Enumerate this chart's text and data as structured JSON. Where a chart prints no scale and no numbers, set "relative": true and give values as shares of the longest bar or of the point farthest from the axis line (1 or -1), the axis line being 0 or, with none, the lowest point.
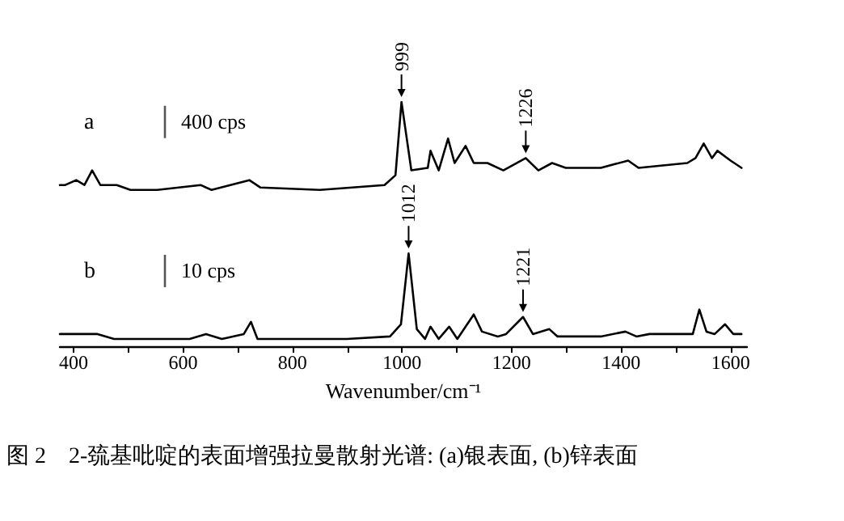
{
  "chart_data": {
    "type": "line",
    "relative": true,
    "xlim": [
      375,
      1630
    ],
    "xlabel": "Wavenumber/cm⁻¹",
    "xticks": [
      400,
      {
        "value": 500,
        "label": null
      },
      600,
      {
        "value": 700,
        "label": null
      },
      800,
      {
        "value": 900,
        "label": null
      },
      1000,
      {
        "value": 1100,
        "label": null
      },
      1200,
      {
        "value": 1300,
        "label": null
      },
      1400,
      {
        "value": 1500,
        "label": null
      },
      1600
    ],
    "series": [
      {
        "name": "a",
        "color": "#000000",
        "x": [
          375,
          385,
          405,
          420,
          434,
          449,
          479,
          504,
          553,
          632,
          652,
          721,
          741,
          850,
          968,
          988,
          999,
          1017,
          1047,
          1052,
          1067,
          1084,
          1096,
          1116,
          1131,
          1156,
          1185,
          1226,
          1249,
          1274,
          1299,
          1363,
          1413,
          1432,
          1521,
          1536,
          1551,
          1566,
          1576,
          1600,
          1620
        ],
        "values": [
          0.66,
          0.66,
          0.68,
          0.66,
          0.72,
          0.66,
          0.66,
          0.64,
          0.64,
          0.66,
          0.64,
          0.68,
          0.65,
          0.64,
          0.66,
          0.7,
          1,
          0.72,
          0.73,
          0.8,
          0.72,
          0.85,
          0.75,
          0.82,
          0.75,
          0.75,
          0.72,
          0.77,
          0.72,
          0.75,
          0.73,
          0.73,
          0.76,
          0.73,
          0.75,
          0.77,
          0.83,
          0.77,
          0.8,
          0.76,
          0.73
        ]
      },
      {
        "name": "b",
        "color": "#000000",
        "x": [
          375,
          414,
          444,
          474,
          553,
          612,
          642,
          671,
          711,
          724,
          736,
          800,
          899,
          978,
          998,
          1012,
          1027,
          1042,
          1052,
          1067,
          1086,
          1101,
          1131,
          1146,
          1175,
          1190,
          1221,
          1239,
          1269,
          1284,
          1363,
          1408,
          1428,
          1452,
          1531,
          1543,
          1556,
          1571,
          1590,
          1605,
          1620
        ],
        "values": [
          0.05,
          0.05,
          0.05,
          0.03,
          0.03,
          0.03,
          0.05,
          0.03,
          0.05,
          0.1,
          0.03,
          0.03,
          0.03,
          0.04,
          0.09,
          0.38,
          0.07,
          0.03,
          0.08,
          0.03,
          0.08,
          0.03,
          0.13,
          0.06,
          0.04,
          0.05,
          0.12,
          0.05,
          0.07,
          0.04,
          0.04,
          0.06,
          0.04,
          0.05,
          0.05,
          0.15,
          0.06,
          0.05,
          0.09,
          0.05,
          0.05
        ]
      }
    ],
    "annotations": [
      "400 cps",
      "10 cps",
      {
        "text": "999",
        "x": 999,
        "y": 1
      },
      {
        "text": "1226",
        "x": 1226,
        "y": 0.77
      },
      {
        "text": "1012",
        "x": 1012,
        "y": 0.38
      },
      {
        "text": "1221",
        "x": 1221,
        "y": 0.12
      },
      "图 2　2-巯基吡啶的表面增强拉曼散射光谱: (a)银表面, (b)锌表面"
    ]
  }
}
